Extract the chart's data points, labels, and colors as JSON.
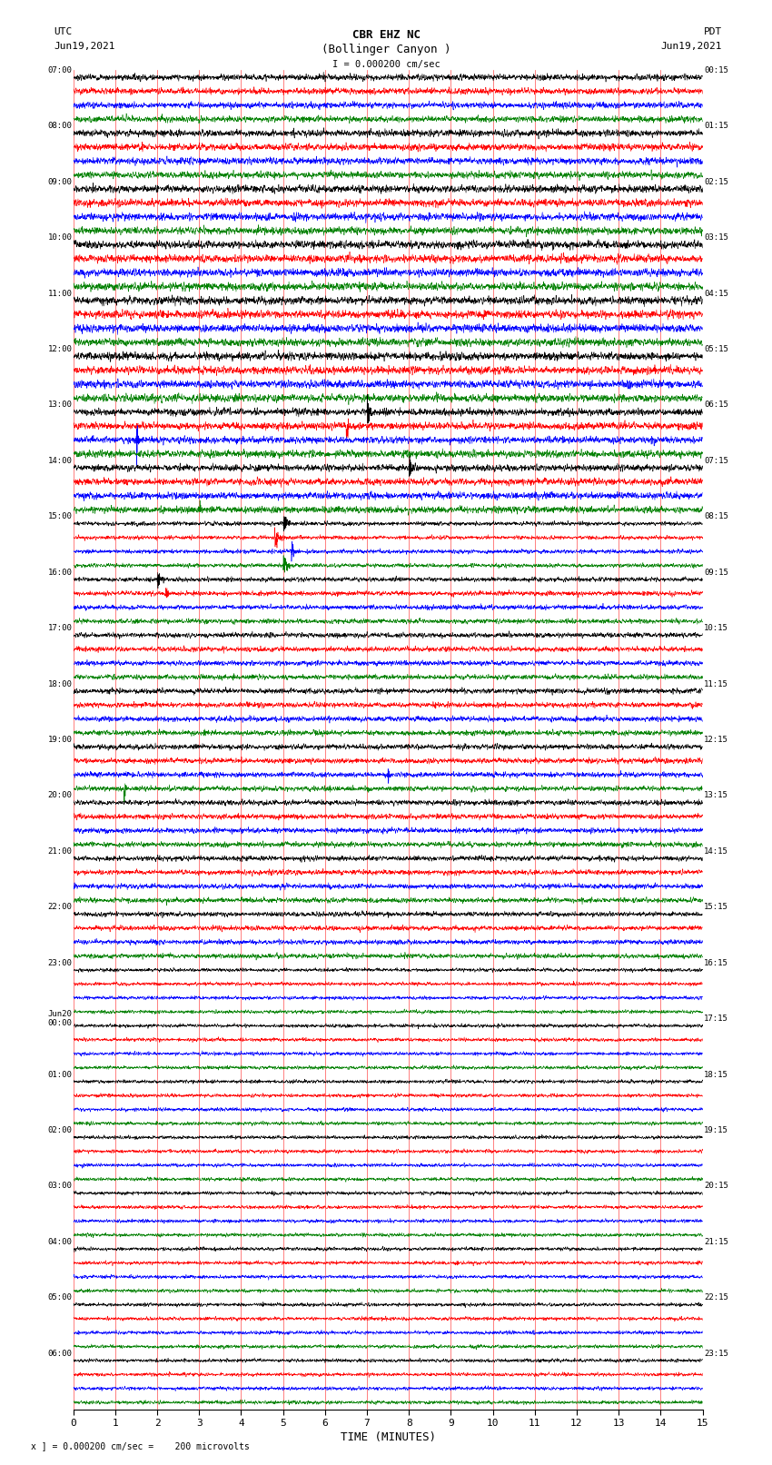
{
  "title_line1": "CBR EHZ NC",
  "title_line2": "(Bollinger Canyon )",
  "scale_label": "I = 0.000200 cm/sec",
  "left_header_line1": "UTC",
  "left_header_line2": "Jun19,2021",
  "right_header_line1": "PDT",
  "right_header_line2": "Jun19,2021",
  "bottom_label": "TIME (MINUTES)",
  "footnote": "x ] = 0.000200 cm/sec =    200 microvolts",
  "xlim": [
    0,
    15
  ],
  "xticks": [
    0,
    1,
    2,
    3,
    4,
    5,
    6,
    7,
    8,
    9,
    10,
    11,
    12,
    13,
    14,
    15
  ],
  "fig_width": 8.5,
  "fig_height": 16.13,
  "dpi": 100,
  "left_times": [
    "07:00",
    "08:00",
    "09:00",
    "10:00",
    "11:00",
    "12:00",
    "13:00",
    "14:00",
    "15:00",
    "16:00",
    "17:00",
    "18:00",
    "19:00",
    "20:00",
    "21:00",
    "22:00",
    "23:00",
    "Jun20\n00:00",
    "01:00",
    "02:00",
    "03:00",
    "04:00",
    "05:00",
    "06:00"
  ],
  "right_times": [
    "00:15",
    "01:15",
    "02:15",
    "03:15",
    "04:15",
    "05:15",
    "06:15",
    "07:15",
    "08:15",
    "09:15",
    "10:15",
    "11:15",
    "12:15",
    "13:15",
    "14:15",
    "15:15",
    "16:15",
    "17:15",
    "18:15",
    "19:15",
    "20:15",
    "21:15",
    "22:15",
    "23:15"
  ],
  "n_rows": 96,
  "rows_per_hour": 4,
  "n_hours": 24,
  "colors": [
    "black",
    "red",
    "blue",
    "green"
  ],
  "bg_color": "white",
  "line_width": 0.4,
  "n_pts": 3600
}
